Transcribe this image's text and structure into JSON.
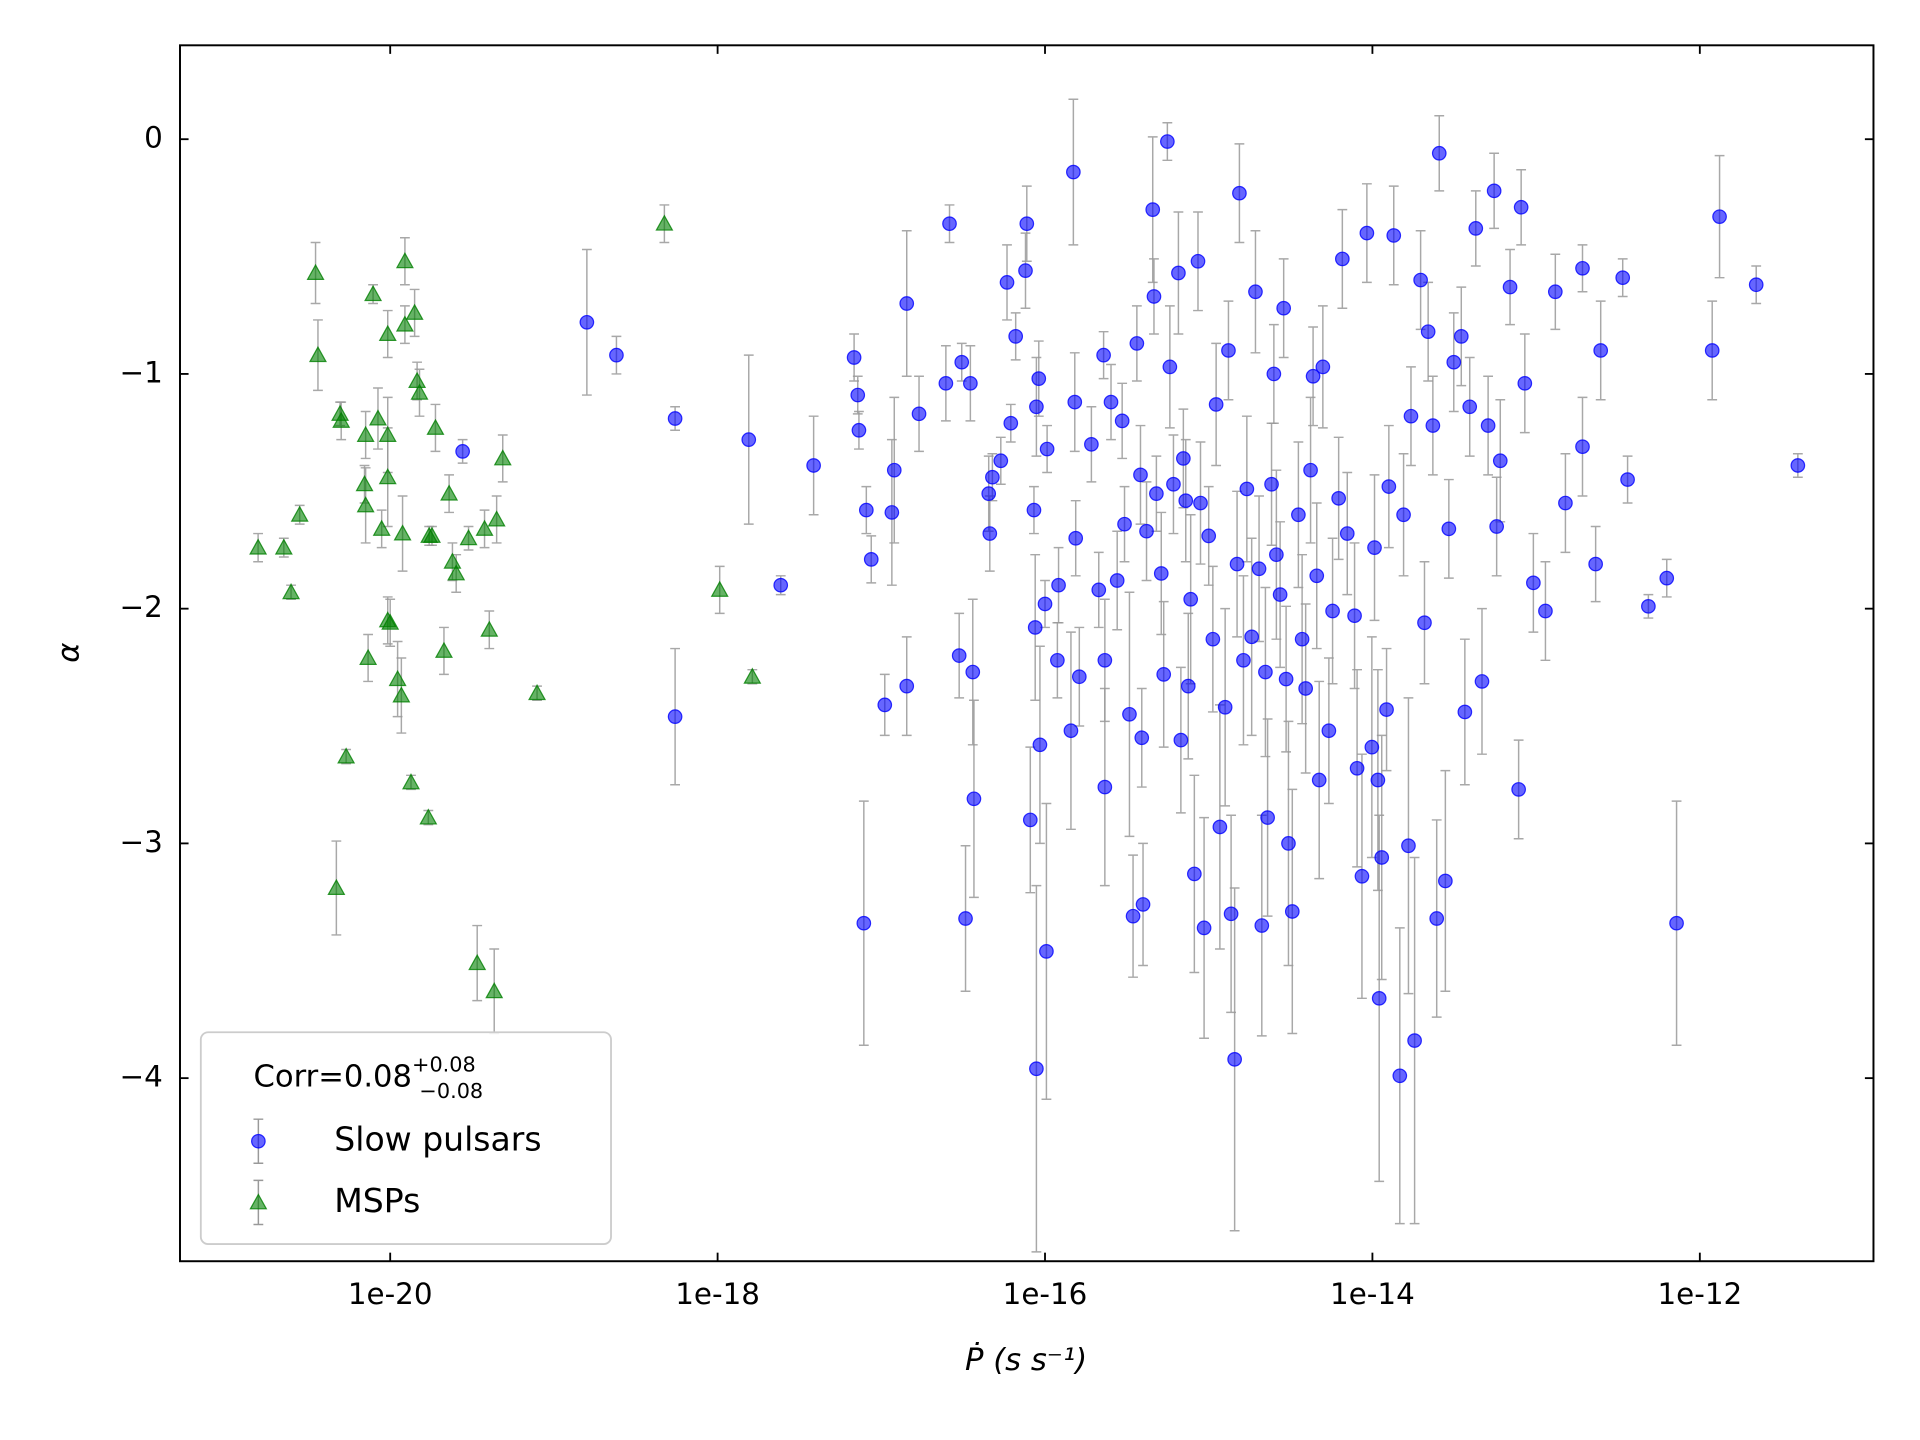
{
  "chart_data": {
    "type": "scatter",
    "xlabel": "Ṗ (s s⁻¹)",
    "ylabel": "α",
    "xscale": "log",
    "xlim": [
      5.2e-22,
      1.15e-11
    ],
    "xticks": [
      {
        "value": 1e-20,
        "label": "1e-20"
      },
      {
        "value": 1e-18,
        "label": "1e-18"
      },
      {
        "value": 1e-16,
        "label": "1e-16"
      },
      {
        "value": 1e-14,
        "label": "1e-14"
      },
      {
        "value": 1e-12,
        "label": "1e-12"
      }
    ],
    "ylim": [
      -4.78,
      0.4
    ],
    "yticks": [
      {
        "value": -4,
        "label": "−4"
      },
      {
        "value": -3,
        "label": "−3"
      },
      {
        "value": -2,
        "label": "−2"
      },
      {
        "value": -1,
        "label": "−1"
      },
      0
    ],
    "legend_loc": "lower left",
    "legend_title": {
      "text": "Corr=0.08",
      "sup": "+0.08",
      "sub": "−0.08"
    },
    "errorbar_color": "#999999",
    "series": [
      {
        "name": "Slow pulsars",
        "color": "#0000ff",
        "marker": "o",
        "x": [
          2.77e-20,
          1.59e-19,
          2.41e-19,
          5.5e-19,
          5.5e-19,
          1.55e-18,
          2.43e-18,
          3.86e-18,
          6.82e-18,
          7.18e-18,
          7.3e-18,
          7.82e-18,
          8.1e-18,
          8.68e-18,
          1.05e-17,
          1.16e-17,
          1.2e-17,
          1.43e-17,
          1.43e-17,
          1.7e-17,
          2.48e-17,
          2.61e-17,
          2.99e-17,
          3.1e-17,
          3.27e-17,
          3.5e-17,
          3.62e-17,
          3.68e-17,
          4.53e-17,
          4.6e-17,
          4.77e-17,
          5.37e-17,
          5.86e-17,
          6.18e-17,
          6.62e-17,
          7.6e-17,
          7.74e-17,
          8.13e-17,
          8.56e-17,
          8.71e-17,
          8.86e-17,
          8.86e-17,
          9.16e-17,
          9.31e-17,
          1e-16,
          1.02e-16,
          1.03e-16,
          1.19e-16,
          1.21e-16,
          1.44e-16,
          1.49e-16,
          1.52e-16,
          1.54e-16,
          1.62e-16,
          1.92e-16,
          2.13e-16,
          2.28e-16,
          2.32e-16,
          2.32e-16,
          2.53e-16,
          2.76e-16,
          2.96e-16,
          3.06e-16,
          3.28e-16,
          3.45e-16,
          3.64e-16,
          3.83e-16,
          3.9e-16,
          3.97e-16,
          4.17e-16,
          4.55e-16,
          4.63e-16,
          4.79e-16,
          5.13e-16,
          5.31e-16,
          5.59e-16,
          5.79e-16,
          6.09e-16,
          6.53e-16,
          6.76e-16,
          7e-16,
          7.24e-16,
          7.5e-16,
          7.76e-16,
          8.17e-16,
          8.6e-16,
          8.91e-16,
          9.37e-16,
          1e-15,
          1.06e-15,
          1.11e-15,
          1.17e-15,
          1.26e-15,
          1.32e-15,
          1.37e-15,
          1.44e-15,
          1.49e-15,
          1.54e-15,
          1.63e-15,
          1.71e-15,
          1.83e-15,
          1.93e-15,
          2.03e-15,
          2.11e-15,
          2.22e-15,
          2.29e-15,
          2.42e-15,
          2.5e-15,
          2.59e-15,
          2.73e-15,
          2.87e-15,
          2.97e-15,
          3.07e-15,
          3.24e-15,
          3.53e-15,
          3.72e-15,
          3.91e-15,
          4.19e-15,
          4.34e-15,
          4.57e-15,
          4.73e-15,
          4.98e-15,
          5.42e-15,
          5.71e-15,
          6.22e-15,
          6.55e-15,
          7.02e-15,
          7.78e-15,
          8.06e-15,
          8.63e-15,
          9.25e-15,
          9.92e-15,
          1.03e-14,
          1.08e-14,
          1.1e-14,
          1.14e-14,
          1.22e-14,
          1.26e-14,
          1.35e-14,
          1.47e-14,
          1.55e-14,
          1.66e-14,
          1.72e-14,
          1.81e-14,
          1.97e-14,
          2.08e-14,
          2.19e-14,
          2.34e-14,
          2.47e-14,
          2.56e-14,
          2.79e-14,
          2.93e-14,
          3.14e-14,
          3.49e-14,
          3.67e-14,
          3.93e-14,
          4.28e-14,
          4.67e-14,
          5.09e-14,
          5.54e-14,
          5.74e-14,
          6.04e-14,
          6.93e-14,
          7.82e-14,
          8.1e-14,
          8.53e-14,
          9.62e-14,
          1.14e-13,
          1.31e-13,
          1.51e-13,
          1.92e-13,
          1.92e-13,
          2.31e-13,
          2.48e-13,
          3.38e-13,
          3.62e-13,
          4.85e-13,
          6.28e-13,
          7.21e-13,
          1.19e-12,
          1.32e-12,
          2.21e-12,
          3.97e-12
        ],
        "values": [
          -1.33,
          -0.78,
          -0.92,
          -1.19,
          -2.46,
          -1.28,
          -1.9,
          -1.39,
          -0.93,
          -1.09,
          -1.24,
          -3.34,
          -1.58,
          -1.79,
          -2.41,
          -1.59,
          -1.41,
          -0.7,
          -2.33,
          -1.17,
          -1.04,
          -0.36,
          -2.2,
          -0.95,
          -3.32,
          -1.04,
          -2.27,
          -2.81,
          -1.51,
          -1.68,
          -1.44,
          -1.37,
          -0.61,
          -1.21,
          -0.84,
          -0.56,
          -0.36,
          -2.9,
          -1.58,
          -2.08,
          -3.96,
          -1.14,
          -1.02,
          -2.58,
          -1.98,
          -3.46,
          -1.32,
          -2.22,
          -1.9,
          -2.52,
          -0.14,
          -1.12,
          -1.7,
          -2.29,
          -1.3,
          -1.92,
          -0.92,
          -2.76,
          -2.22,
          -1.12,
          -1.88,
          -1.2,
          -1.64,
          -2.45,
          -3.31,
          -0.87,
          -1.43,
          -2.55,
          -3.26,
          -1.67,
          -0.3,
          -0.67,
          -1.51,
          -1.85,
          -2.28,
          -0.01,
          -0.97,
          -1.47,
          -0.57,
          -2.56,
          -1.36,
          -1.54,
          -2.33,
          -1.96,
          -3.13,
          -0.52,
          -1.55,
          -3.36,
          -1.69,
          -2.13,
          -1.13,
          -2.93,
          -2.42,
          -0.9,
          -3.3,
          -3.92,
          -1.81,
          -0.23,
          -2.22,
          -1.49,
          -2.12,
          -0.65,
          -1.83,
          -3.35,
          -2.27,
          -2.89,
          -1.47,
          -1.0,
          -1.77,
          -1.94,
          -0.72,
          -2.3,
          -3.0,
          -3.29,
          -1.6,
          -2.13,
          -2.34,
          -1.41,
          -1.01,
          -1.86,
          -2.73,
          -0.97,
          -2.52,
          -2.01,
          -1.53,
          -0.51,
          -1.68,
          -2.03,
          -2.68,
          -3.14,
          -0.4,
          -2.59,
          -1.74,
          -2.73,
          -3.66,
          -3.06,
          -2.43,
          -1.48,
          -0.41,
          -3.99,
          -1.6,
          -3.01,
          -1.18,
          -3.84,
          -0.6,
          -2.06,
          -0.82,
          -1.22,
          -3.32,
          -0.06,
          -3.16,
          -1.66,
          -0.95,
          -0.84,
          -2.44,
          -1.14,
          -0.38,
          -2.31,
          -1.22,
          -0.22,
          -1.65,
          -1.37,
          -0.63,
          -2.77,
          -0.29,
          -1.04,
          -1.89,
          -2.01,
          -0.65,
          -1.55,
          -1.31,
          -0.55,
          -1.81,
          -0.9,
          -0.59,
          -1.45,
          -1.99,
          -1.87,
          -3.34,
          -0.9,
          -0.33,
          -0.62,
          -1.39
        ],
        "errors": [
          0.05,
          0.31,
          0.08,
          0.05,
          0.29,
          0.36,
          0.04,
          0.21,
          0.1,
          0.08,
          0.08,
          0.52,
          0.1,
          0.1,
          0.13,
          0.31,
          0.31,
          0.31,
          0.21,
          0.16,
          0.16,
          0.08,
          0.18,
          0.08,
          0.31,
          0.16,
          0.31,
          0.42,
          0.16,
          0.16,
          0.1,
          0.1,
          0.16,
          0.08,
          0.1,
          0.16,
          0.16,
          0.31,
          0.1,
          0.31,
          0.78,
          0.21,
          0.16,
          0.42,
          0.1,
          0.63,
          0.1,
          0.16,
          0.16,
          0.42,
          0.31,
          0.21,
          0.16,
          0.21,
          0.16,
          0.16,
          0.1,
          0.42,
          0.26,
          0.16,
          0.21,
          0.16,
          0.16,
          0.52,
          0.26,
          0.16,
          0.21,
          0.21,
          0.26,
          0.21,
          0.31,
          0.16,
          0.16,
          0.26,
          0.31,
          0.08,
          0.26,
          0.21,
          0.26,
          0.31,
          0.21,
          0.26,
          0.31,
          0.36,
          0.42,
          0.21,
          0.26,
          0.47,
          0.21,
          0.31,
          0.26,
          0.52,
          0.42,
          0.21,
          0.42,
          0.73,
          0.31,
          0.21,
          0.36,
          0.31,
          0.42,
          0.26,
          0.31,
          0.47,
          0.36,
          0.42,
          0.26,
          0.21,
          0.36,
          0.31,
          0.21,
          0.31,
          0.52,
          0.52,
          0.31,
          0.36,
          0.36,
          0.31,
          0.21,
          0.31,
          0.42,
          0.26,
          0.31,
          0.31,
          0.26,
          0.21,
          0.26,
          0.31,
          0.42,
          0.52,
          0.21,
          0.47,
          0.31,
          0.47,
          0.78,
          0.52,
          0.26,
          0.26,
          0.21,
          0.63,
          0.26,
          0.63,
          0.21,
          0.78,
          0.21,
          0.26,
          0.21,
          0.21,
          0.42,
          0.16,
          0.47,
          0.21,
          0.21,
          0.21,
          0.31,
          0.21,
          0.16,
          0.31,
          0.21,
          0.16,
          0.21,
          0.26,
          0.16,
          0.21,
          0.16,
          0.21,
          0.21,
          0.21,
          0.16,
          0.21,
          0.21,
          0.1,
          0.16,
          0.21,
          0.08,
          0.1,
          0.05,
          0.08,
          0.52,
          0.21,
          0.26,
          0.08,
          0.05
        ]
      },
      {
        "name": "MSPs",
        "color": "#008000",
        "marker": "^",
        "x": [
          1.56e-21,
          2.24e-21,
          2.48e-21,
          2.8e-21,
          3.5e-21,
          3.62e-21,
          4.69e-21,
          4.94e-21,
          5.02e-21,
          5.38e-21,
          7.08e-21,
          6.97e-21,
          7.08e-21,
          7.33e-21,
          7.86e-21,
          8.42e-21,
          8.87e-21,
          9.66e-21,
          9.66e-21,
          9.66e-21,
          9.66e-21,
          1e-20,
          1.11e-20,
          1.17e-20,
          1.19e-20,
          1.23e-20,
          1.23e-20,
          1.34e-20,
          1.41e-20,
          1.46e-20,
          1.51e-20,
          1.71e-20,
          1.73e-20,
          1.8e-20,
          1.89e-20,
          2.13e-20,
          2.29e-20,
          2.4e-20,
          2.53e-20,
          3.01e-20,
          3.4e-20,
          3.77e-20,
          4.03e-20,
          4.32e-20,
          4.47e-20,
          4.87e-20,
          7.89e-20,
          4.73e-19,
          1.03e-18,
          1.63e-18
        ],
        "values": [
          -1.74,
          -1.74,
          -1.93,
          -1.6,
          -0.57,
          -0.92,
          -3.19,
          -1.17,
          -1.2,
          -2.63,
          -1.26,
          -1.47,
          -1.56,
          -2.21,
          -0.66,
          -1.19,
          -1.66,
          -1.26,
          -0.83,
          -1.44,
          -2.05,
          -2.06,
          -2.3,
          -2.37,
          -1.68,
          -0.52,
          -0.79,
          -2.74,
          -0.74,
          -1.03,
          -1.08,
          -2.89,
          -1.69,
          -1.69,
          -1.23,
          -2.18,
          -1.51,
          -1.8,
          -1.85,
          -1.7,
          -3.51,
          -1.66,
          -2.09,
          -3.63,
          -1.62,
          -1.36,
          -2.36,
          -0.36,
          -1.92,
          -2.29
        ],
        "errors": [
          0.06,
          0.04,
          0.03,
          0.04,
          0.13,
          0.15,
          0.2,
          0.05,
          0.08,
          0.03,
          0.1,
          0.08,
          0.16,
          0.1,
          0.04,
          0.13,
          0.08,
          0.16,
          0.1,
          0.21,
          0.1,
          0.1,
          0.16,
          0.16,
          0.16,
          0.1,
          0.08,
          0.03,
          0.1,
          0.08,
          0.1,
          0.03,
          0.04,
          0.04,
          0.1,
          0.1,
          0.08,
          0.08,
          0.08,
          0.05,
          0.16,
          0.08,
          0.08,
          0.18,
          0.1,
          0.1,
          0.03,
          0.08,
          0.1,
          0.03
        ]
      }
    ]
  }
}
